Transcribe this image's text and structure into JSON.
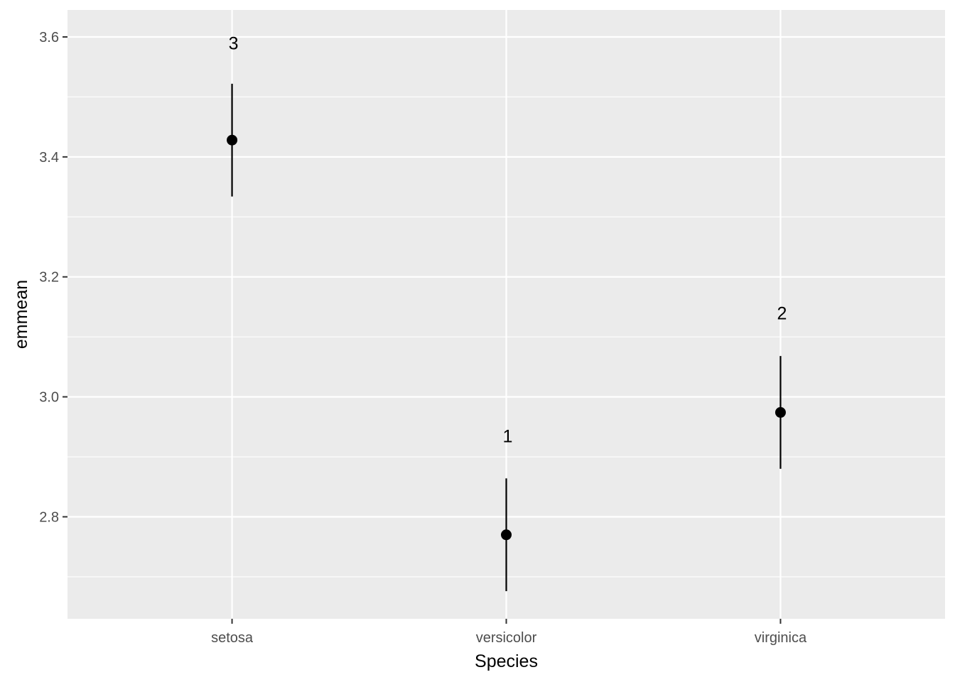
{
  "chart_data": {
    "type": "scatter",
    "xlabel": "Species",
    "ylabel": "emmean",
    "categories": [
      "setosa",
      "versicolor",
      "virginica"
    ],
    "series": [
      {
        "values": [
          3.428,
          2.77,
          2.974
        ],
        "lower": [
          3.334,
          2.676,
          2.88
        ],
        "upper": [
          3.522,
          2.864,
          3.068
        ],
        "labels": [
          "3",
          "1",
          "2"
        ],
        "label_values": [
          3.59,
          2.935,
          3.14
        ]
      }
    ],
    "ylim": [
      2.63,
      3.645
    ],
    "yticks": [
      2.8,
      3.0,
      3.2,
      3.4,
      3.6
    ],
    "ytick_labels": [
      "2.8",
      "3.0",
      "3.2",
      "3.4",
      "3.6"
    ],
    "grid": true,
    "colors": {
      "panel": "#ebebeb",
      "grid": "#ffffff",
      "marks": "#000000"
    }
  }
}
